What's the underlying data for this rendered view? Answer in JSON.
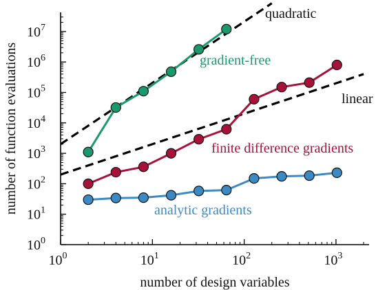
{
  "chart_data": {
    "type": "line",
    "title": "",
    "xlabel": "number of design variables",
    "ylabel": "number of function evaluations",
    "xscale": "log",
    "yscale": "log",
    "xlim": [
      1,
      2000
    ],
    "ylim": [
      1,
      30000000
    ],
    "grid": false,
    "x_ticks": [
      {
        "value": 1,
        "mantissa": "10",
        "exp": "0"
      },
      {
        "value": 10,
        "mantissa": "10",
        "exp": "1"
      },
      {
        "value": 100,
        "mantissa": "10",
        "exp": "2"
      },
      {
        "value": 1000,
        "mantissa": "10",
        "exp": "3"
      }
    ],
    "y_ticks": [
      {
        "value": 1,
        "mantissa": "10",
        "exp": "0"
      },
      {
        "value": 10,
        "mantissa": "10",
        "exp": "1"
      },
      {
        "value": 100,
        "mantissa": "10",
        "exp": "2"
      },
      {
        "value": 1000,
        "mantissa": "10",
        "exp": "3"
      },
      {
        "value": 10000,
        "mantissa": "10",
        "exp": "4"
      },
      {
        "value": 100000,
        "mantissa": "10",
        "exp": "5"
      },
      {
        "value": 1000000,
        "mantissa": "10",
        "exp": "6"
      },
      {
        "value": 10000000,
        "mantissa": "10",
        "exp": "7"
      }
    ],
    "series": [
      {
        "name": "gradient-free",
        "color": "#1a9a6c",
        "x": [
          2,
          4,
          8,
          16,
          32,
          64
        ],
        "y": [
          1100,
          32000,
          110000,
          480000,
          2600000,
          12000000
        ]
      },
      {
        "name": "finite difference gradients",
        "color": "#a8123a",
        "x": [
          2,
          4,
          8,
          16,
          32,
          64,
          128,
          256,
          512,
          1024
        ],
        "y": [
          100,
          240,
          360,
          1000,
          2900,
          6200,
          60000,
          150000,
          210000,
          800000
        ]
      },
      {
        "name": "analytic gradients",
        "color": "#3b8ac4",
        "x": [
          2,
          4,
          8,
          16,
          32,
          64,
          128,
          256,
          512,
          1024
        ],
        "y": [
          30,
          34,
          35,
          42,
          58,
          62,
          150,
          175,
          185,
          230
        ]
      }
    ],
    "reference_lines": [
      {
        "name": "quadratic",
        "color": "#000000",
        "x": [
          1,
          200
        ],
        "y": [
          2000,
          85000000
        ]
      },
      {
        "name": "linear",
        "color": "#000000",
        "x": [
          1,
          2000
        ],
        "y": [
          200,
          400000
        ]
      }
    ]
  }
}
